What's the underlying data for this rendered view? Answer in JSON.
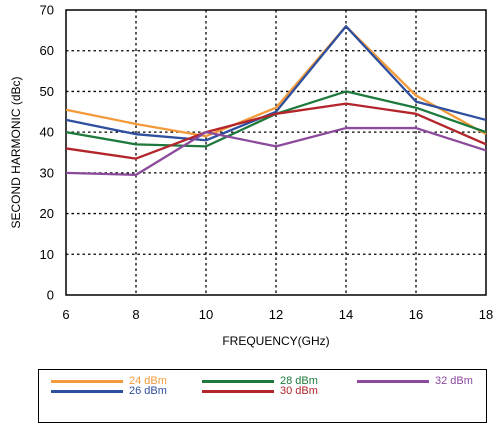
{
  "chart_data": {
    "type": "line",
    "xlabel": "FREQUENCY(GHz)",
    "ylabel": "SECOND HARMONIC (dBc)",
    "xlim": [
      6,
      18
    ],
    "ylim": [
      0,
      70
    ],
    "xticks": [
      "6",
      "8",
      "10",
      "12",
      "14",
      "16",
      "18"
    ],
    "yticks": [
      "0",
      "10",
      "20",
      "30",
      "40",
      "50",
      "60",
      "70"
    ],
    "grid": true,
    "legend_position": "bottom",
    "x": [
      6,
      8,
      10,
      12,
      14,
      16,
      18
    ],
    "series": [
      {
        "name": "24 dBm",
        "color": "#F39A3A",
        "values": [
          45.5,
          42,
          39,
          46,
          66,
          49,
          39.5
        ]
      },
      {
        "name": "26 dBm",
        "color": "#2E4E9E",
        "values": [
          43,
          39.5,
          38,
          45,
          66,
          47.5,
          43
        ]
      },
      {
        "name": "28 dBm",
        "color": "#1E7A3C",
        "values": [
          40,
          37,
          36.5,
          44.5,
          50,
          46,
          40
        ]
      },
      {
        "name": "30 dBm",
        "color": "#B3242B",
        "values": [
          36,
          33.5,
          40,
          44.5,
          47,
          44.5,
          37
        ]
      },
      {
        "name": "32 dBm",
        "color": "#8B4A9C",
        "values": [
          30,
          29.5,
          40,
          36.5,
          41,
          41,
          35.5
        ]
      }
    ]
  }
}
